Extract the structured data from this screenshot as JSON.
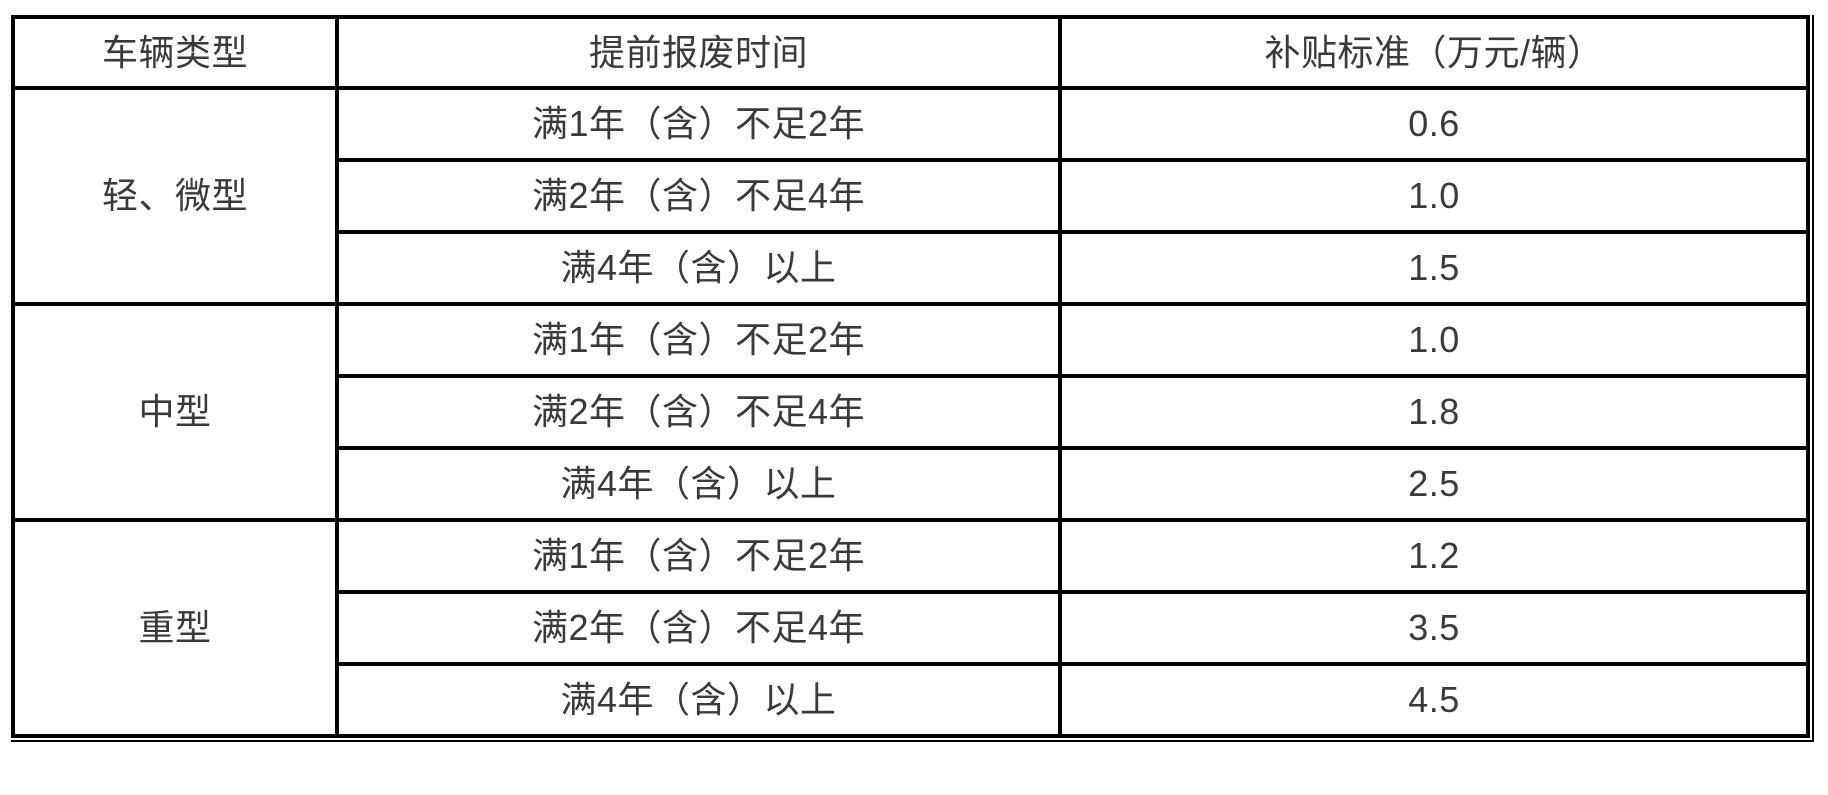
{
  "table": {
    "columns": [
      "车辆类型",
      "提前报废时间",
      "补贴标准（万元/辆）"
    ],
    "groups": [
      {
        "type": "轻、微型",
        "rows": [
          {
            "time": "满1年（含）不足2年",
            "subsidy": "0.6"
          },
          {
            "time": "满2年（含）不足4年",
            "subsidy": "1.0"
          },
          {
            "time": "满4年（含）以上",
            "subsidy": "1.5"
          }
        ]
      },
      {
        "type": "中型",
        "rows": [
          {
            "time": "满1年（含）不足2年",
            "subsidy": "1.0"
          },
          {
            "time": "满2年（含）不足4年",
            "subsidy": "1.8"
          },
          {
            "time": "满4年（含）以上",
            "subsidy": "2.5"
          }
        ]
      },
      {
        "type": "重型",
        "rows": [
          {
            "time": "满1年（含）不足2年",
            "subsidy": "1.2"
          },
          {
            "time": "满2年（含）不足4年",
            "subsidy": "3.5"
          },
          {
            "time": "满4年（含）以上",
            "subsidy": "4.5"
          }
        ]
      }
    ]
  },
  "colors": {
    "border": "#000000",
    "text": "#3a3a3a",
    "background": "#ffffff"
  }
}
